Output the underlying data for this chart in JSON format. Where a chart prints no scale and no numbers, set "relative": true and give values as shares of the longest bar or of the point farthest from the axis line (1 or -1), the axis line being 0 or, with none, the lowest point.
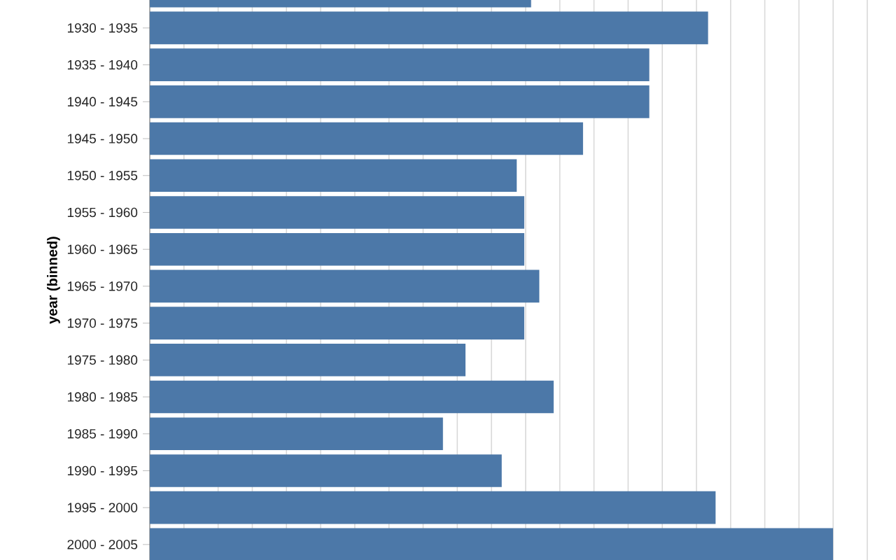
{
  "chart_data": {
    "type": "bar",
    "orientation": "horizontal",
    "relative": true,
    "ylabel": "year (binned)",
    "grid": "x",
    "color": "#4c78a8",
    "categories": [
      null,
      "1930 - 1935",
      "1935 - 1940",
      "1940 - 1945",
      "1945 - 1950",
      "1950 - 1955",
      "1955 - 1960",
      "1960 - 1965",
      "1965 - 1970",
      "1970 - 1975",
      "1975 - 1980",
      "1980 - 1985",
      "1985 - 1990",
      "1990 - 1995",
      "1995 - 2000",
      "2000 - 2005"
    ],
    "values": [
      0.558,
      0.817,
      0.731,
      0.731,
      0.634,
      0.537,
      0.548,
      0.548,
      0.57,
      0.548,
      0.462,
      0.591,
      0.429,
      0.515,
      0.828,
      1
    ]
  }
}
